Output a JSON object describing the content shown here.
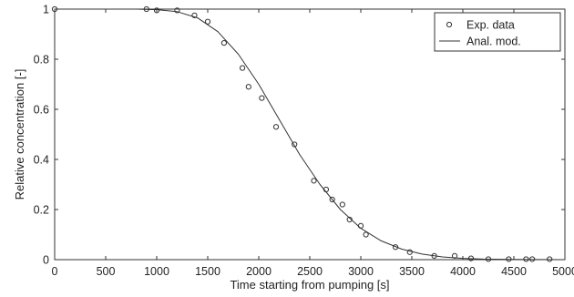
{
  "chart_data": {
    "type": "scatter",
    "title": "",
    "xlabel": "Time starting from pumping [s]",
    "ylabel": "Relative concentration [-]",
    "xlim": [
      0,
      5000
    ],
    "ylim": [
      0,
      1
    ],
    "xticks": [
      0,
      500,
      1000,
      1500,
      2000,
      2500,
      3000,
      3500,
      4000,
      4500,
      5000
    ],
    "yticks": [
      0,
      0.2,
      0.4,
      0.6,
      0.8,
      1
    ],
    "xtick_labels": [
      "0",
      "500",
      "1000",
      "1500",
      "2000",
      "2500",
      "3000",
      "3500",
      "4000",
      "4500",
      "5000"
    ],
    "ytick_labels": [
      "0",
      "0.2",
      "0.4",
      "0.6",
      "0.8",
      "1"
    ],
    "grid": false,
    "legend_position": "top-right",
    "series": [
      {
        "name": "Exp. data",
        "type": "scatter",
        "marker": "circle",
        "color": "#333333",
        "points": [
          {
            "x": 0,
            "y": 1.0
          },
          {
            "x": 900,
            "y": 1.0
          },
          {
            "x": 1000,
            "y": 0.995
          },
          {
            "x": 1200,
            "y": 0.995
          },
          {
            "x": 1370,
            "y": 0.975
          },
          {
            "x": 1500,
            "y": 0.95
          },
          {
            "x": 1660,
            "y": 0.865
          },
          {
            "x": 1840,
            "y": 0.765
          },
          {
            "x": 1900,
            "y": 0.69
          },
          {
            "x": 2030,
            "y": 0.645
          },
          {
            "x": 2170,
            "y": 0.53
          },
          {
            "x": 2350,
            "y": 0.46
          },
          {
            "x": 2540,
            "y": 0.315
          },
          {
            "x": 2660,
            "y": 0.28
          },
          {
            "x": 2720,
            "y": 0.24
          },
          {
            "x": 2820,
            "y": 0.22
          },
          {
            "x": 2890,
            "y": 0.16
          },
          {
            "x": 3000,
            "y": 0.135
          },
          {
            "x": 3050,
            "y": 0.1
          },
          {
            "x": 3340,
            "y": 0.05
          },
          {
            "x": 3480,
            "y": 0.03
          },
          {
            "x": 3720,
            "y": 0.015
          },
          {
            "x": 3920,
            "y": 0.015
          },
          {
            "x": 4080,
            "y": 0.005
          },
          {
            "x": 4250,
            "y": 0.002
          },
          {
            "x": 4450,
            "y": 0.002
          },
          {
            "x": 4620,
            "y": 0.002
          },
          {
            "x": 4680,
            "y": 0.002
          },
          {
            "x": 4850,
            "y": 0.002
          }
        ]
      },
      {
        "name": "Anal. mod.",
        "type": "line",
        "color": "#333333",
        "points": [
          {
            "x": 0,
            "y": 1.0
          },
          {
            "x": 800,
            "y": 1.0
          },
          {
            "x": 1000,
            "y": 0.998
          },
          {
            "x": 1200,
            "y": 0.99
          },
          {
            "x": 1400,
            "y": 0.965
          },
          {
            "x": 1600,
            "y": 0.91
          },
          {
            "x": 1800,
            "y": 0.82
          },
          {
            "x": 2000,
            "y": 0.7
          },
          {
            "x": 2200,
            "y": 0.56
          },
          {
            "x": 2400,
            "y": 0.42
          },
          {
            "x": 2600,
            "y": 0.3
          },
          {
            "x": 2800,
            "y": 0.2
          },
          {
            "x": 3000,
            "y": 0.125
          },
          {
            "x": 3200,
            "y": 0.075
          },
          {
            "x": 3400,
            "y": 0.042
          },
          {
            "x": 3600,
            "y": 0.022
          },
          {
            "x": 3800,
            "y": 0.011
          },
          {
            "x": 4000,
            "y": 0.005
          },
          {
            "x": 4200,
            "y": 0.002
          },
          {
            "x": 4500,
            "y": 0.001
          },
          {
            "x": 5000,
            "y": 0.0
          }
        ]
      }
    ]
  }
}
